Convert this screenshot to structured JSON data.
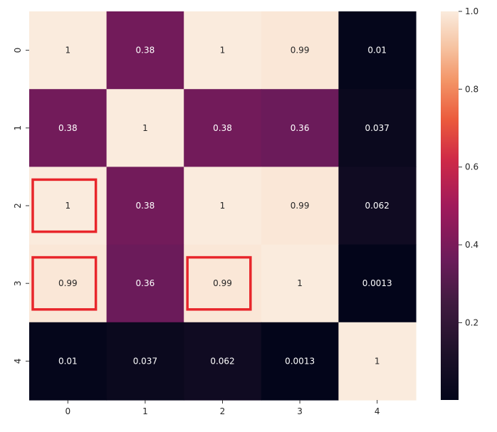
{
  "chart_data": {
    "type": "heatmap",
    "x_labels": [
      "0",
      "1",
      "2",
      "3",
      "4"
    ],
    "y_labels": [
      "0",
      "1",
      "2",
      "3",
      "4"
    ],
    "values": [
      [
        1,
        0.38,
        1,
        0.99,
        0.01
      ],
      [
        0.38,
        1,
        0.38,
        0.36,
        0.037
      ],
      [
        1,
        0.38,
        1,
        0.99,
        0.062
      ],
      [
        0.99,
        0.36,
        0.99,
        1,
        0.0013
      ],
      [
        0.01,
        0.037,
        0.062,
        0.0013,
        1
      ]
    ],
    "cell_labels": [
      [
        "1",
        "0.38",
        "1",
        "0.99",
        "0.01"
      ],
      [
        "0.38",
        "1",
        "0.38",
        "0.36",
        "0.037"
      ],
      [
        "1",
        "0.38",
        "1",
        "0.99",
        "0.062"
      ],
      [
        "0.99",
        "0.36",
        "0.99",
        "1",
        "0.0013"
      ],
      [
        "0.01",
        "0.037",
        "0.062",
        "0.0013",
        "1"
      ]
    ],
    "colorbar": {
      "range": [
        0.0013,
        1
      ],
      "ticks": [
        0.2,
        0.4,
        0.6,
        0.8,
        1.0
      ],
      "tick_labels": [
        "0.2",
        "0.4",
        "0.6",
        "0.8",
        "1.0"
      ]
    },
    "colormap": "rocket",
    "highlights": [
      {
        "row": 2,
        "col": 0
      },
      {
        "row": 3,
        "col": 0
      },
      {
        "row": 3,
        "col": 2
      }
    ],
    "highlight_color": "#e8262b"
  }
}
